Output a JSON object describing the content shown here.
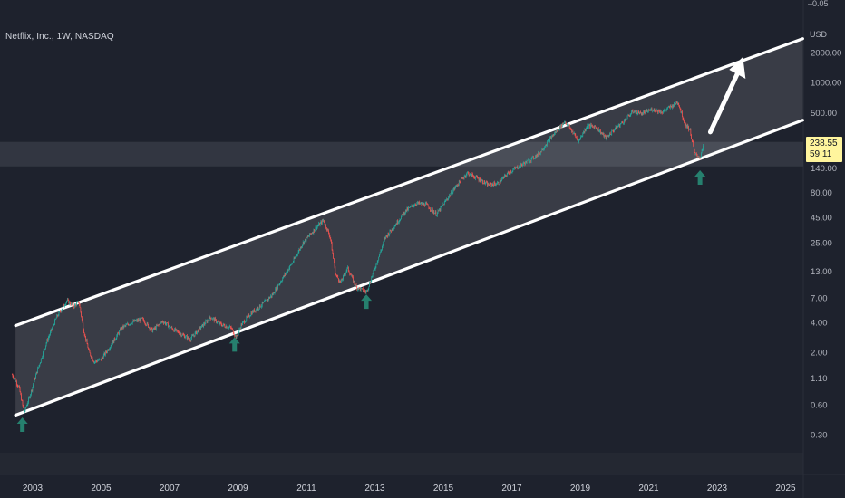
{
  "header": {
    "symbol_title": "Netflix, Inc., 1W, NASDAQ",
    "currency": "USD",
    "top_tick_partial": "–0.05"
  },
  "price_badge": {
    "price": "238.55",
    "countdown": "59:11",
    "color": "#fff59d"
  },
  "colors": {
    "background": "#1e222d",
    "channel_line": "#ffffff",
    "channel_fill": "#ffffff",
    "candle_up": "#26a69a",
    "candle_down": "#ef5350",
    "arrow_marker": "#26806e",
    "highlight_band": "#3a3d48"
  },
  "chart_data": {
    "type": "candlestick",
    "title": "Netflix, Inc., 1W, NASDAQ",
    "y_scale": "log",
    "y_ticks": [
      "2000.00",
      "1000.00",
      "500.00",
      "140.00",
      "80.00",
      "45.00",
      "25.00",
      "13.00",
      "7.00",
      "4.00",
      "2.00",
      "1.10",
      "0.60",
      "0.30"
    ],
    "x_ticks": [
      "2003",
      "2005",
      "2007",
      "2009",
      "2011",
      "2013",
      "2015",
      "2017",
      "2019",
      "2021",
      "2023",
      "2025"
    ],
    "price_series": {
      "name": "NFLX",
      "points": [
        [
          2002.4,
          1.2
        ],
        [
          2002.6,
          0.9
        ],
        [
          2002.75,
          0.5
        ],
        [
          2002.9,
          0.7
        ],
        [
          2003.1,
          1.2
        ],
        [
          2003.4,
          2.5
        ],
        [
          2003.7,
          4.5
        ],
        [
          2004.0,
          6.6
        ],
        [
          2004.2,
          5.8
        ],
        [
          2004.35,
          6.4
        ],
        [
          2004.5,
          3.2
        ],
        [
          2004.65,
          2.0
        ],
        [
          2004.8,
          1.6
        ],
        [
          2005.0,
          1.7
        ],
        [
          2005.3,
          2.4
        ],
        [
          2005.6,
          3.5
        ],
        [
          2005.9,
          4.0
        ],
        [
          2006.2,
          4.3
        ],
        [
          2006.5,
          3.3
        ],
        [
          2006.8,
          4.1
        ],
        [
          2007.1,
          3.4
        ],
        [
          2007.3,
          3.1
        ],
        [
          2007.6,
          2.7
        ],
        [
          2007.9,
          3.5
        ],
        [
          2008.2,
          4.5
        ],
        [
          2008.5,
          3.8
        ],
        [
          2008.8,
          3.5
        ],
        [
          2008.95,
          2.8
        ],
        [
          2009.1,
          3.8
        ],
        [
          2009.4,
          5.0
        ],
        [
          2009.7,
          6.0
        ],
        [
          2010.0,
          7.5
        ],
        [
          2010.3,
          11.0
        ],
        [
          2010.6,
          16.0
        ],
        [
          2010.9,
          25.0
        ],
        [
          2011.2,
          33.0
        ],
        [
          2011.5,
          42.0
        ],
        [
          2011.7,
          28.0
        ],
        [
          2011.85,
          12.0
        ],
        [
          2012.0,
          10.0
        ],
        [
          2012.2,
          14.0
        ],
        [
          2012.45,
          9.0
        ],
        [
          2012.75,
          8.0
        ],
        [
          2013.0,
          14.0
        ],
        [
          2013.3,
          28.0
        ],
        [
          2013.6,
          38.0
        ],
        [
          2013.9,
          52.0
        ],
        [
          2014.2,
          62.0
        ],
        [
          2014.5,
          60.0
        ],
        [
          2014.8,
          48.0
        ],
        [
          2015.1,
          68.0
        ],
        [
          2015.4,
          95.0
        ],
        [
          2015.7,
          125.0
        ],
        [
          2016.0,
          110.0
        ],
        [
          2016.3,
          95.0
        ],
        [
          2016.6,
          98.0
        ],
        [
          2016.9,
          125.0
        ],
        [
          2017.2,
          145.0
        ],
        [
          2017.5,
          165.0
        ],
        [
          2017.8,
          195.0
        ],
        [
          2018.1,
          270.0
        ],
        [
          2018.35,
          340.0
        ],
        [
          2018.55,
          410.0
        ],
        [
          2018.75,
          330.0
        ],
        [
          2018.95,
          260.0
        ],
        [
          2019.2,
          370.0
        ],
        [
          2019.45,
          360.0
        ],
        [
          2019.75,
          280.0
        ],
        [
          2020.0,
          340.0
        ],
        [
          2020.3,
          420.0
        ],
        [
          2020.55,
          520.0
        ],
        [
          2020.8,
          490.0
        ],
        [
          2021.1,
          540.0
        ],
        [
          2021.4,
          510.0
        ],
        [
          2021.7,
          590.0
        ],
        [
          2021.85,
          650.0
        ],
        [
          2022.05,
          390.0
        ],
        [
          2022.2,
          340.0
        ],
        [
          2022.35,
          190.0
        ],
        [
          2022.5,
          180.0
        ],
        [
          2022.62,
          240.0
        ]
      ]
    },
    "channel": {
      "upper": {
        "start": [
          2002.5,
          3.7
        ],
        "end": [
          2025.5,
          2750
        ]
      },
      "lower": {
        "start": [
          2002.5,
          0.47
        ],
        "end": [
          2025.5,
          420
        ]
      }
    },
    "markers": [
      {
        "type": "up-arrow",
        "x": 2002.7,
        "y": 0.37
      },
      {
        "type": "up-arrow",
        "x": 2008.9,
        "y": 2.35
      },
      {
        "type": "up-arrow",
        "x": 2012.75,
        "y": 6.3
      },
      {
        "type": "up-arrow",
        "x": 2022.5,
        "y": 110
      }
    ],
    "projection_arrow": {
      "from": [
        2022.8,
        320
      ],
      "to": [
        2023.75,
        1800
      ]
    },
    "highlight_band": {
      "low": 145,
      "high": 255
    },
    "grid": false
  }
}
